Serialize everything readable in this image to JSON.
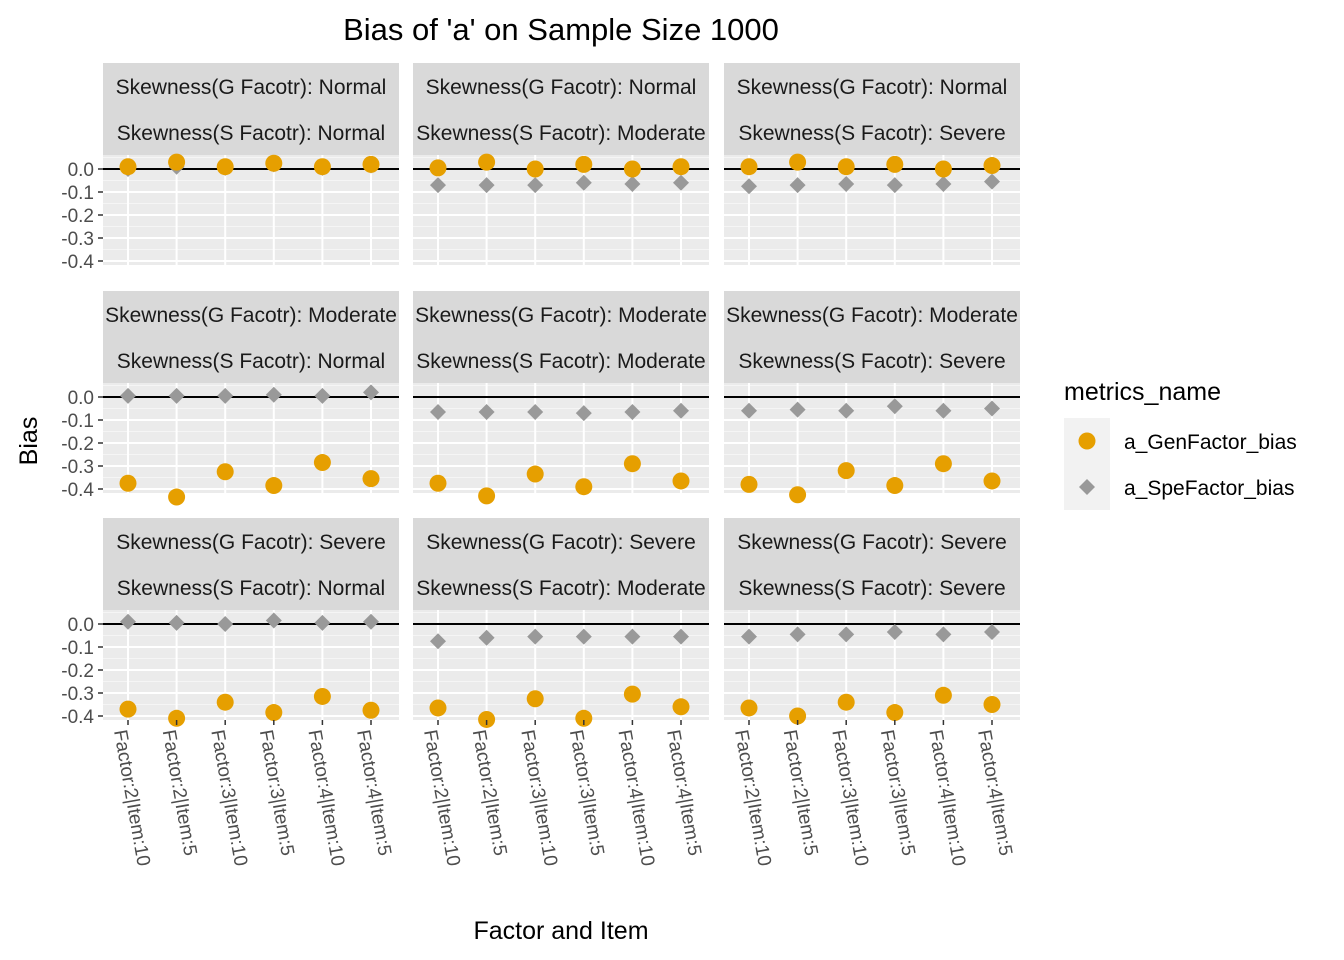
{
  "chart_data": {
    "type": "scatter",
    "title": "Bias of 'a' on Sample Size 1000",
    "xlabel": "Factor and Item",
    "ylabel": "Bias",
    "categories": [
      "Factor:2|Item:10",
      "Factor:2|Item:5",
      "Factor:3|Item:10",
      "Factor:3|Item:5",
      "Factor:4|Item:10",
      "Factor:4|Item:5"
    ],
    "y_ticks": [
      "0.0",
      "-0.1",
      "-0.2",
      "-0.3",
      "-0.4"
    ],
    "y_tick_values": [
      0.0,
      -0.1,
      -0.2,
      -0.3,
      -0.4
    ],
    "ylim": [
      -0.45,
      0.04
    ],
    "hline": 0,
    "grid": true,
    "legend": {
      "title": "metrics_name",
      "placement": "right",
      "entries": [
        {
          "name": "a_GenFactor_bias",
          "color": "#E69F00",
          "shape": "circle"
        },
        {
          "name": "a_SpeFactor_bias",
          "color": "#999999",
          "shape": "diamond"
        }
      ]
    },
    "panels": [
      {
        "strip_top": "Skewness(G Facotr): Normal",
        "strip_bottom": "Skewness(S Facotr): Normal",
        "gen": [
          0.01,
          0.03,
          0.01,
          0.025,
          0.01,
          0.02
        ],
        "spe": [
          0.0,
          0.01,
          0.005,
          0.02,
          0.005,
          0.015
        ]
      },
      {
        "strip_top": "Skewness(G Facotr): Normal",
        "strip_bottom": "Skewness(S Facotr): Moderate",
        "gen": [
          0.005,
          0.03,
          0.0,
          0.02,
          0.0,
          0.01
        ],
        "spe": [
          -0.07,
          -0.07,
          -0.07,
          -0.06,
          -0.065,
          -0.06
        ]
      },
      {
        "strip_top": "Skewness(G Facotr): Normal",
        "strip_bottom": "Skewness(S Facotr): Severe",
        "gen": [
          0.01,
          0.03,
          0.01,
          0.02,
          0.0,
          0.015
        ],
        "spe": [
          -0.075,
          -0.07,
          -0.065,
          -0.07,
          -0.065,
          -0.055
        ]
      },
      {
        "strip_top": "Skewness(G Facotr): Moderate",
        "strip_bottom": "Skewness(S Facotr): Normal",
        "gen": [
          -0.375,
          -0.435,
          -0.325,
          -0.385,
          -0.285,
          -0.355
        ],
        "spe": [
          0.005,
          0.005,
          0.005,
          0.01,
          0.005,
          0.02
        ]
      },
      {
        "strip_top": "Skewness(G Facotr): Moderate",
        "strip_bottom": "Skewness(S Facotr): Moderate",
        "gen": [
          -0.375,
          -0.43,
          -0.335,
          -0.39,
          -0.29,
          -0.365
        ],
        "spe": [
          -0.065,
          -0.065,
          -0.065,
          -0.07,
          -0.065,
          -0.06
        ]
      },
      {
        "strip_top": "Skewness(G Facotr): Moderate",
        "strip_bottom": "Skewness(S Facotr): Severe",
        "gen": [
          -0.38,
          -0.425,
          -0.32,
          -0.385,
          -0.29,
          -0.365
        ],
        "spe": [
          -0.06,
          -0.055,
          -0.06,
          -0.04,
          -0.06,
          -0.05
        ]
      },
      {
        "strip_top": "Skewness(G Facotr): Severe",
        "strip_bottom": "Skewness(S Facotr): Normal",
        "gen": [
          -0.37,
          -0.41,
          -0.34,
          -0.385,
          -0.315,
          -0.375
        ],
        "spe": [
          0.01,
          0.005,
          0.0,
          0.015,
          0.005,
          0.01
        ]
      },
      {
        "strip_top": "Skewness(G Facotr): Severe",
        "strip_bottom": "Skewness(S Facotr): Moderate",
        "gen": [
          -0.365,
          -0.415,
          -0.325,
          -0.41,
          -0.305,
          -0.36
        ],
        "spe": [
          -0.075,
          -0.06,
          -0.055,
          -0.055,
          -0.055,
          -0.055
        ]
      },
      {
        "strip_top": "Skewness(G Facotr): Severe",
        "strip_bottom": "Skewness(S Facotr): Severe",
        "gen": [
          -0.365,
          -0.4,
          -0.34,
          -0.385,
          -0.31,
          -0.35
        ],
        "spe": [
          -0.055,
          -0.045,
          -0.045,
          -0.035,
          -0.045,
          -0.035
        ]
      }
    ]
  }
}
